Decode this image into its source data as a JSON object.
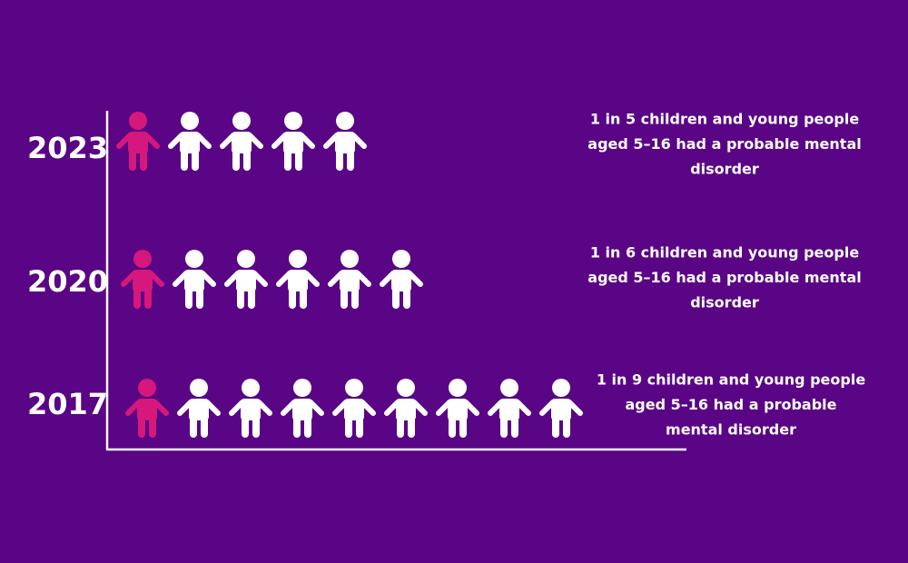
{
  "chart_data": {
    "type": "pictogram",
    "categories": [
      "2023",
      "2020",
      "2017"
    ],
    "values": [
      5,
      6,
      9
    ],
    "highlighted": 1,
    "highlight_color": "#d6177b",
    "color": "#ffffff",
    "background": "#5a0585",
    "annotations": [
      [
        "1 in 5 children and young people",
        "aged 5–16 had a probable mental",
        "disorder"
      ],
      [
        "1 in 6 children and young people",
        "aged 5–16 had a probable mental",
        "disorder"
      ],
      [
        "1 in 9 children and young people",
        "aged 5–16 had a probable",
        "mental disorder"
      ]
    ]
  }
}
